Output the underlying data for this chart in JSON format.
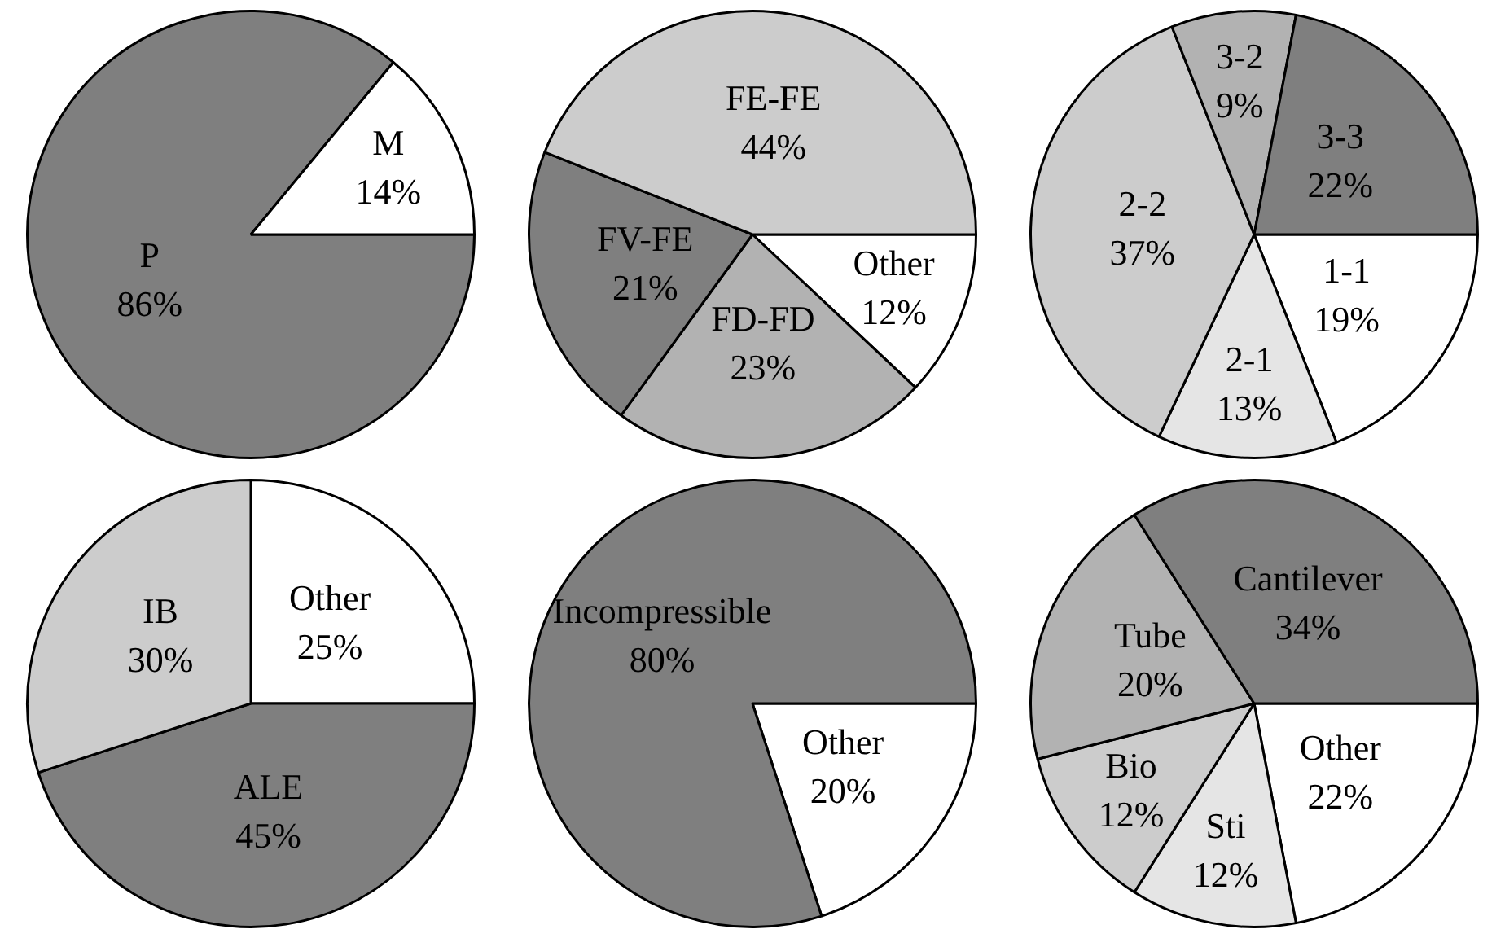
{
  "chart_data": [
    {
      "type": "pie",
      "categories": [
        "P",
        "M"
      ],
      "values": [
        86,
        14
      ],
      "value_labels": [
        "86%",
        "14%"
      ],
      "colors": [
        "#7f7f7f",
        "#ffffff"
      ],
      "legend": false
    },
    {
      "type": "pie",
      "categories": [
        "Other",
        "FD-FD",
        "FV-FE",
        "FE-FE"
      ],
      "values": [
        12,
        23,
        21,
        44
      ],
      "value_labels": [
        "12%",
        "23%",
        "21%",
        "44%"
      ],
      "colors": [
        "#ffffff",
        "#b2b2b2",
        "#7f7f7f",
        "#cccccc"
      ],
      "legend": false
    },
    {
      "type": "pie",
      "categories": [
        "1-1",
        "2-1",
        "2-2",
        "3-2",
        "3-3"
      ],
      "values": [
        19,
        13,
        37,
        9,
        22
      ],
      "value_labels": [
        "19%",
        "13%",
        "37%",
        "9%",
        "22%"
      ],
      "colors": [
        "#ffffff",
        "#e5e5e5",
        "#cccccc",
        "#b2b2b2",
        "#7f7f7f"
      ],
      "legend": false
    },
    {
      "type": "pie",
      "categories": [
        "Other",
        "ALE",
        "IB"
      ],
      "values": [
        25,
        45,
        30
      ],
      "value_labels": [
        "25%",
        "45%",
        "30%"
      ],
      "colors": [
        "#ffffff",
        "#7f7f7f",
        "#cccccc"
      ],
      "legend": false
    },
    {
      "type": "pie",
      "categories": [
        "Other",
        "Incompressible"
      ],
      "values": [
        20,
        80
      ],
      "value_labels": [
        "20%",
        "80%"
      ],
      "colors": [
        "#ffffff",
        "#7f7f7f"
      ],
      "legend": false
    },
    {
      "type": "pie",
      "categories": [
        "Other",
        "Sti",
        "Bio",
        "Tube",
        "Cantilever"
      ],
      "values": [
        22,
        12,
        12,
        20,
        34
      ],
      "value_labels": [
        "22%",
        "12%",
        "12%",
        "20%",
        "34%"
      ],
      "colors": [
        "#ffffff",
        "#e5e5e5",
        "#cccccc",
        "#b2b2b2",
        "#7f7f7f"
      ],
      "legend": false
    }
  ]
}
